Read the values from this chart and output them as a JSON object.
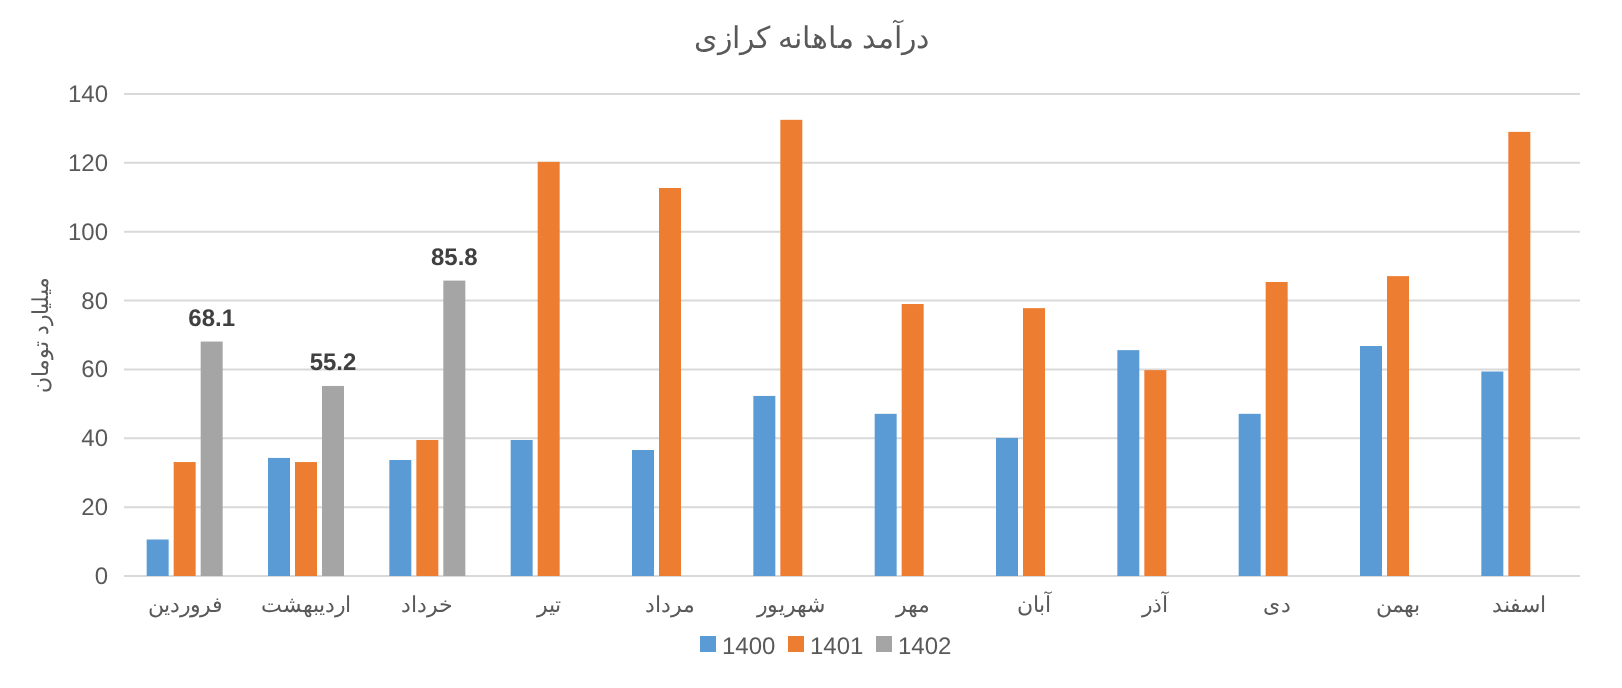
{
  "chart_data": {
    "type": "bar",
    "title": "درآمد ماهانه کرازی",
    "ylabel": "میلیارد تومان",
    "categories": [
      "فروردین",
      "اردیبهشت",
      "خرداد",
      "تیر",
      "مرداد",
      "شهریور",
      "مهر",
      "آبان",
      "آذر",
      "دی",
      "بهمن",
      "اسفند"
    ],
    "series": [
      {
        "name": "1400",
        "color": "#5b9bd5",
        "values": [
          10.6,
          34.3,
          33.7,
          39.5,
          36.6,
          52.3,
          47.1,
          40.1,
          65.6,
          47.1,
          66.8,
          59.4
        ]
      },
      {
        "name": "1401",
        "color": "#ed7d31",
        "values": [
          33.1,
          33.1,
          39.5,
          120.3,
          112.7,
          132.5,
          79.0,
          77.8,
          59.8,
          85.4,
          87.1,
          129.0
        ]
      },
      {
        "name": "1402",
        "color": "#a5a5a5",
        "values": [
          68.1,
          55.2,
          85.8,
          null,
          null,
          null,
          null,
          null,
          null,
          null,
          null,
          null
        ],
        "value_labels": [
          "68.1",
          "55.2",
          "85.8",
          null,
          null,
          null,
          null,
          null,
          null,
          null,
          null,
          null
        ]
      }
    ],
    "ylim": [
      0,
      140
    ],
    "yticks": [
      0,
      20,
      40,
      60,
      80,
      100,
      120,
      140
    ],
    "grid": "y",
    "legend": "bottom"
  }
}
